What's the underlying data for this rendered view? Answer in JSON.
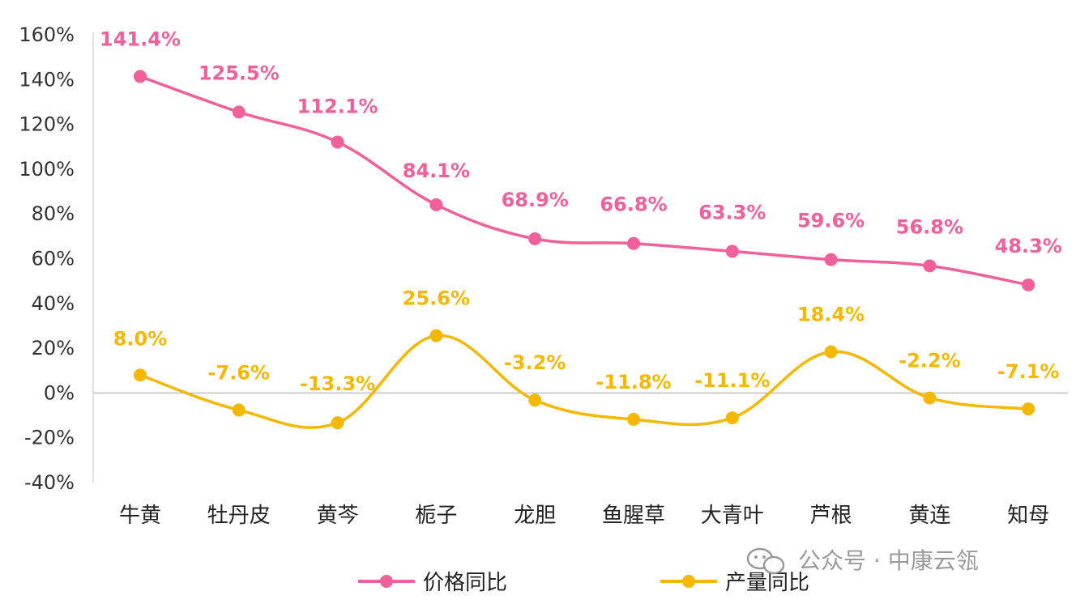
{
  "chart_data": {
    "type": "line",
    "categories": [
      "牛黄",
      "牡丹皮",
      "黄芩",
      "栀子",
      "龙胆",
      "鱼腥草",
      "大青叶",
      "芦根",
      "黄连",
      "知母"
    ],
    "series": [
      {
        "name": "价格同比",
        "color": "#f0609a",
        "values": [
          141.4,
          125.5,
          112.1,
          84.1,
          68.9,
          66.8,
          63.3,
          59.6,
          56.8,
          48.3
        ],
        "labels": [
          "141.4%",
          "125.5%",
          "112.1%",
          "84.1%",
          "68.9%",
          "66.8%",
          "63.3%",
          "59.6%",
          "56.8%",
          "48.3%"
        ]
      },
      {
        "name": "产量同比",
        "color": "#f5b800",
        "values": [
          8.0,
          -7.6,
          -13.3,
          25.6,
          -3.2,
          -11.8,
          -11.1,
          18.4,
          -2.2,
          -7.1
        ],
        "labels": [
          "8.0%",
          "-7.6%",
          "-13.3%",
          "25.6%",
          "-3.2%",
          "-11.8%",
          "-11.1%",
          "18.4%",
          "-2.2%",
          "-7.1%"
        ]
      }
    ],
    "y_ticks": [
      "160%",
      "140%",
      "120%",
      "100%",
      "80%",
      "60%",
      "40%",
      "20%",
      "0%",
      "-20%",
      "-40%"
    ],
    "ylim": [
      -40,
      160
    ],
    "legend_position": "bottom",
    "smooth": true
  },
  "watermark": {
    "icon": "wechat-icon",
    "text": "公众号 · 中康云瓴"
  }
}
